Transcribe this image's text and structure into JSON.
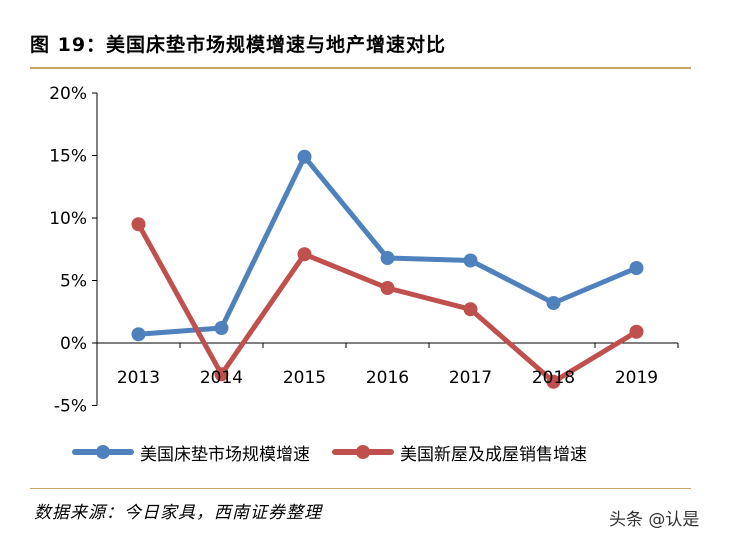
{
  "title": "图 19：美国床垫市场规模增速与地产增速对比",
  "source": "数据来源：今日家具，西南证券整理",
  "watermark": "头条 @认是",
  "chart_data": {
    "type": "line",
    "categories": [
      "2013",
      "2014",
      "2015",
      "2016",
      "2017",
      "2018",
      "2019"
    ],
    "y_ticks": [
      "-5%",
      "0%",
      "5%",
      "10%",
      "15%",
      "20%"
    ],
    "ylim": [
      -5,
      20
    ],
    "grid": false,
    "legend_position": "bottom",
    "series": [
      {
        "name": "美国床垫市场规模增速",
        "color": "#4f81bd",
        "values": [
          0.7,
          1.2,
          14.9,
          6.8,
          6.6,
          3.2,
          6.0
        ]
      },
      {
        "name": "美国新屋及成屋销售增速",
        "color": "#c0504d",
        "values": [
          9.5,
          -2.5,
          7.1,
          4.4,
          2.7,
          -3.1,
          0.9
        ]
      }
    ]
  }
}
